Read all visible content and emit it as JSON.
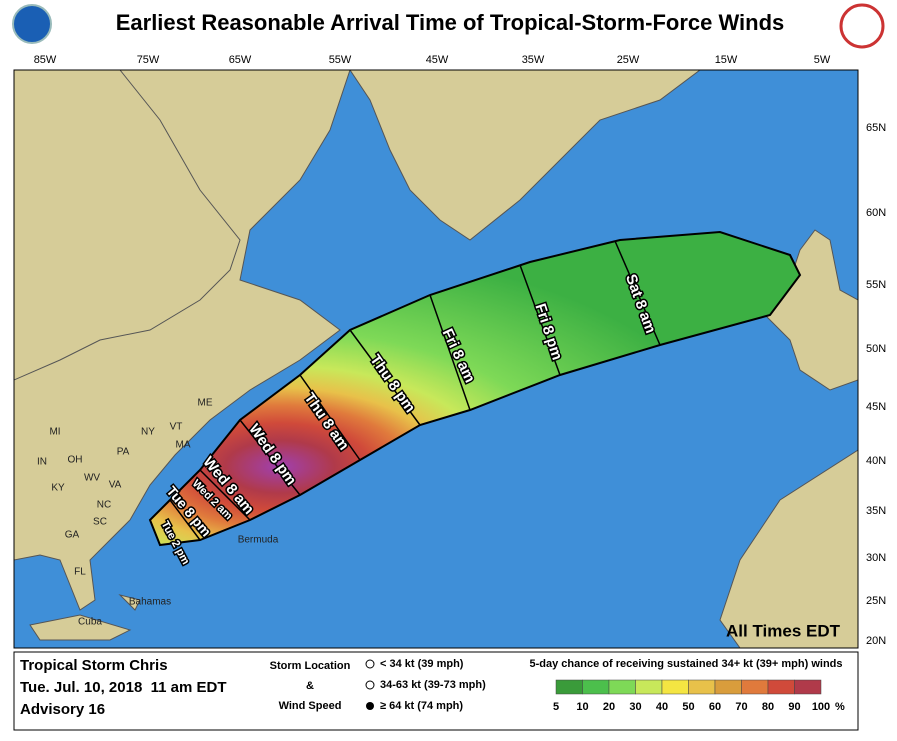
{
  "header": {
    "title": "Earliest Reasonable Arrival Time of Tropical-Storm-Force Winds"
  },
  "map": {
    "longitude_labels": [
      "85W",
      "75W",
      "65W",
      "55W",
      "45W",
      "35W",
      "25W",
      "15W",
      "5W"
    ],
    "latitude_labels": [
      "65N",
      "60N",
      "55N",
      "50N",
      "45N",
      "40N",
      "35N",
      "30N",
      "25N",
      "20N"
    ],
    "place_labels": [
      "MI",
      "NY",
      "PA",
      "OH",
      "IN",
      "KY",
      "WV",
      "VA",
      "NC",
      "SC",
      "GA",
      "FL",
      "ME",
      "VT",
      "MA",
      "Bermuda",
      "Bahamas",
      "Cuba"
    ],
    "time_labels": [
      "Tue 2 pm",
      "Tue 8 pm",
      "Wed 2 am",
      "Wed 8 am",
      "Wed 8 pm",
      "Thu 8 am",
      "Thu 8 pm",
      "Fri 8 am",
      "Fri 8 pm",
      "Sat 8 am"
    ],
    "note": "All Times EDT"
  },
  "legend": {
    "storm_name": "Tropical Storm Chris",
    "date": "Tue. Jul. 10, 2018  11 am EDT",
    "advisory": "Advisory 16",
    "storm_location_title": "Storm Location",
    "ampersand": "&",
    "wind_speed_title": "Wind Speed",
    "wind_categories": [
      "< 34 kt (39 mph)",
      "34-63 kt (39-73 mph)",
      "≥ 64 kt (74 mph)"
    ],
    "probability_title": "5-day chance of receiving sustained 34+ kt (39+ mph) winds",
    "probability_scale": [
      5,
      10,
      20,
      30,
      40,
      50,
      60,
      70,
      80,
      90,
      100
    ],
    "probability_unit": "%"
  }
}
